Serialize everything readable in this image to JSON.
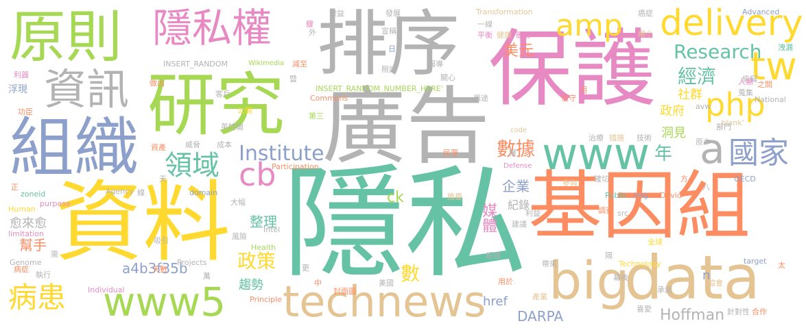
{
  "palette": {
    "green": "#66c2a5",
    "orange": "#fc8d62",
    "blue": "#8da0cb",
    "pink": "#e78ac3",
    "lime": "#a6d854",
    "yellow": "#ffd92f",
    "tan": "#e5c494",
    "gray": "#b3b3b3",
    "background": "#ffffff"
  },
  "words": [
    {
      "text": "隱私",
      "color": "#66c2a5"
    },
    {
      "text": "保護",
      "color": "#e78ac3"
    },
    {
      "text": "資料",
      "color": "#ffd92f"
    },
    {
      "text": "基因組",
      "color": "#fc8d62"
    },
    {
      "text": "廣告",
      "color": "#b3b3b3"
    },
    {
      "text": "排序",
      "color": "#b3b3b3"
    },
    {
      "text": "研究",
      "color": "#a6d854"
    },
    {
      "text": "組織",
      "color": "#8da0cb"
    },
    {
      "text": "原則",
      "color": "#a6d854"
    },
    {
      "text": "data",
      "color": "#e5c494"
    },
    {
      "text": "big",
      "color": "#e5c494"
    },
    {
      "text": "technews",
      "color": "#e5c494"
    },
    {
      "text": "www5",
      "color": "#a6d854"
    },
    {
      "text": "隱私權",
      "color": "#e78ac3"
    },
    {
      "text": "資訊",
      "color": "#b3b3b3"
    },
    {
      "text": "www",
      "color": "#66c2a5"
    },
    {
      "text": "delivery",
      "color": "#ffd92f"
    },
    {
      "text": "tw",
      "color": "#ffd92f"
    },
    {
      "text": "amp",
      "color": "#ffd92f"
    },
    {
      "text": "php",
      "color": "#ffd92f"
    },
    {
      "text": "a",
      "color": "#b3b3b3"
    },
    {
      "text": "國家",
      "color": "#8da0cb"
    },
    {
      "text": "cb",
      "color": "#e78ac3"
    },
    {
      "text": "病患",
      "color": "#ffd92f"
    },
    {
      "text": "領域",
      "color": "#66c2a5"
    },
    {
      "text": "Institute",
      "color": "#8da0cb"
    },
    {
      "text": "Research",
      "color": "#66c2a5"
    },
    {
      "text": "美元",
      "color": "#fc8d62"
    },
    {
      "text": "經濟",
      "color": "#66c2a5"
    },
    {
      "text": "數據",
      "color": "#fc8d62"
    },
    {
      "text": "年",
      "color": "#66c2a5"
    },
    {
      "text": "政策",
      "color": "#ffd92f"
    },
    {
      "text": "Hoffman",
      "color": "#b3b3b3"
    },
    {
      "text": "DARPA",
      "color": "#8da0cb"
    },
    {
      "text": "a4b3f35b",
      "color": "#8da0cb"
    },
    {
      "text": "數",
      "color": "#ffd92f"
    },
    {
      "text": "媒體",
      "color": "#e78ac3"
    },
    {
      "text": "社群",
      "color": "#ffd92f"
    },
    {
      "text": "洞見",
      "color": "#a6d854"
    },
    {
      "text": "政府",
      "color": "#ffd92f"
    },
    {
      "text": "企業",
      "color": "#8da0cb"
    },
    {
      "text": "紀錄",
      "color": "#b3b3b3"
    },
    {
      "text": "整理",
      "color": "#66c2a5"
    },
    {
      "text": "趨勢",
      "color": "#66c2a5"
    },
    {
      "text": "href",
      "color": "#8da0cb"
    },
    {
      "text": "n",
      "color": "#8da0cb"
    },
    {
      "text": "ck",
      "color": "#a6d854"
    },
    {
      "text": "愈來愈",
      "color": "#b3b3b3"
    },
    {
      "text": "幫手",
      "color": "#fc8d62"
    },
    {
      "text": "浮現",
      "color": "#8da0cb"
    },
    {
      "text": "功臣",
      "color": "#fc8d62"
    },
    {
      "text": "利器",
      "color": "#e78ac3"
    },
    {
      "text": "INSERT_RANDOM",
      "color": "#b3b3b3"
    },
    {
      "text": "INSERT_RANDOM_NUMBER_HERE'",
      "color": "#a6d854"
    },
    {
      "text": "Wikimedia",
      "color": "#a6d854"
    },
    {
      "text": "Commons",
      "color": "#fc8d62"
    },
    {
      "text": "Transformation",
      "color": "#e5c494"
    },
    {
      "text": "Advanced",
      "color": "#8da0cb"
    },
    {
      "text": "National",
      "color": "#b3b3b3"
    },
    {
      "text": "Participation",
      "color": "#fc8d62"
    },
    {
      "text": "Defense",
      "color": "#e78ac3"
    },
    {
      "text": "Public",
      "color": "#66c2a5"
    },
    {
      "text": "img",
      "color": "#8da0cb"
    },
    {
      "text": "David",
      "color": "#fc8d62"
    },
    {
      "text": "Technology",
      "color": "#ffd92f"
    },
    {
      "text": "Principle",
      "color": "#fc8d62"
    },
    {
      "text": "Projects",
      "color": "#b3b3b3"
    },
    {
      "text": "Health",
      "color": "#a6d854"
    },
    {
      "text": "Intel",
      "color": "#b3b3b3"
    },
    {
      "text": "Individual",
      "color": "#e78ac3"
    },
    {
      "text": "Agency",
      "color": "#b3b3b3"
    },
    {
      "text": "domain",
      "color": "#8da0cb"
    },
    {
      "text": "purpose",
      "color": "#e78ac3"
    },
    {
      "text": "zoneid",
      "color": "#66c2a5"
    },
    {
      "text": "Human",
      "color": "#ffd92f"
    },
    {
      "text": "limitation",
      "color": "#e78ac3"
    },
    {
      "text": "Genome",
      "color": "#b3b3b3"
    },
    {
      "text": "target",
      "color": "#8da0cb"
    },
    {
      "text": "OECD",
      "color": "#8da0cb"
    },
    {
      "text": "avw",
      "color": "#b3b3b3"
    },
    {
      "text": "_blank'",
      "color": "#e5c494"
    },
    {
      "text": "code",
      "color": "#e5c494"
    },
    {
      "text": "src",
      "color": "#b3b3b3"
    },
    {
      "text": "效益",
      "color": "#b3b3b3"
    },
    {
      "text": "發展",
      "color": "#b3b3b3"
    },
    {
      "text": "宣稱",
      "color": "#b3b3b3"
    },
    {
      "text": "照護",
      "color": "#b3b3b3"
    },
    {
      "text": "報導",
      "color": "#b3b3b3"
    },
    {
      "text": "關心",
      "color": "#b3b3b3"
    },
    {
      "text": "一線",
      "color": "#b3b3b3"
    },
    {
      "text": "平衡",
      "color": "#e78ac3"
    },
    {
      "text": "健康",
      "color": "#e5c494"
    },
    {
      "text": "刪除",
      "color": "#e78ac3"
    },
    {
      "text": "癌症",
      "color": "#b3b3b3"
    },
    {
      "text": "縮小",
      "color": "#e5c494"
    },
    {
      "text": "洩漏",
      "color": "#66c2a5"
    },
    {
      "text": "偷竊",
      "color": "#b3b3b3"
    },
    {
      "text": "蒐集",
      "color": "#b3b3b3"
    },
    {
      "text": "人類",
      "color": "#e78ac3"
    },
    {
      "text": "之間",
      "color": "#fc8d62"
    },
    {
      "text": "減至",
      "color": "#fc8d62"
    },
    {
      "text": "做出",
      "color": "#fc8d62"
    },
    {
      "text": "客戶",
      "color": "#b3b3b3"
    },
    {
      "text": "公開",
      "color": "#ffd92f"
    },
    {
      "text": "英特爾",
      "color": "#b3b3b3"
    },
    {
      "text": "第三",
      "color": "#a6d854"
    },
    {
      "text": "威脅",
      "color": "#b3b3b3"
    },
    {
      "text": "成本",
      "color": "#b3b3b3"
    },
    {
      "text": "資產",
      "color": "#fc8d62"
    },
    {
      "text": "用途",
      "color": "#b3b3b3"
    },
    {
      "text": "信守",
      "color": "#fc8d62"
    },
    {
      "text": "部門",
      "color": "#b3b3b3"
    },
    {
      "text": "治療",
      "color": "#b3b3b3"
    },
    {
      "text": "措施",
      "color": "#e5c494"
    },
    {
      "text": "技術",
      "color": "#b3b3b3"
    },
    {
      "text": "原本",
      "color": "#b3b3b3"
    },
    {
      "text": "民眾",
      "color": "#fc8d62"
    },
    {
      "text": "參與",
      "color": "#e5c494"
    },
    {
      "text": "確切",
      "color": "#b3b3b3"
    },
    {
      "text": "線",
      "color": "#b3b3b3"
    },
    {
      "text": "大幅",
      "color": "#b3b3b3"
    },
    {
      "text": "吸引",
      "color": "#b3b3b3"
    },
    {
      "text": "風險",
      "color": "#b3b3b3"
    },
    {
      "text": "天數",
      "color": "#fc8d62"
    },
    {
      "text": "擔憂",
      "color": "#e5c494"
    },
    {
      "text": "利益",
      "color": "#b3b3b3"
    },
    {
      "text": "建議",
      "color": "#b3b3b3"
    },
    {
      "text": "調查",
      "color": "#fc8d62"
    },
    {
      "text": "全球",
      "color": "#ffd92f"
    },
    {
      "text": "經理",
      "color": "#b3b3b3"
    },
    {
      "text": "帶來",
      "color": "#b3b3b3"
    },
    {
      "text": "幕後",
      "color": "#b3b3b3"
    },
    {
      "text": "承諾",
      "color": "#b3b3b3"
    },
    {
      "text": "產業",
      "color": "#e5c494"
    },
    {
      "text": "喜愛",
      "color": "#b3b3b3"
    },
    {
      "text": "針對性",
      "color": "#b3b3b3"
    },
    {
      "text": "合作",
      "color": "#fc8d62"
    },
    {
      "text": "封面圖",
      "color": "#fc8d62"
    },
    {
      "text": "美國",
      "color": "#b3b3b3"
    },
    {
      "text": "協會",
      "color": "#e5c494"
    },
    {
      "text": "病症",
      "color": "#fc8d62"
    },
    {
      "text": "執行",
      "color": "#b3b3b3"
    },
    {
      "text": "用於",
      "color": "#fc8d62"
    },
    {
      "text": "驟",
      "color": "#e78ac3"
    },
    {
      "text": "外",
      "color": "#b3b3b3"
    },
    {
      "text": "日",
      "color": "#8da0cb"
    },
    {
      "text": "暨",
      "color": "#b3b3b3"
    },
    {
      "text": "月",
      "color": "#fc8d62"
    },
    {
      "text": "正",
      "color": "#fc8d62"
    },
    {
      "text": "天",
      "color": "#b3b3b3"
    },
    {
      "text": "需",
      "color": "#b3b3b3"
    },
    {
      "text": "萬",
      "color": "#b3b3b3"
    },
    {
      "text": "更",
      "color": "#b3b3b3"
    },
    {
      "text": "中",
      "color": "#fc8d62"
    },
    {
      "text": "權",
      "color": "#b3b3b3"
    },
    {
      "text": "方",
      "color": "#fc8d62"
    },
    {
      "text": "八",
      "color": "#b3b3b3"
    },
    {
      "text": "隔",
      "color": "#b3b3b3"
    },
    {
      "text": "太",
      "color": "#fc8d62"
    }
  ]
}
